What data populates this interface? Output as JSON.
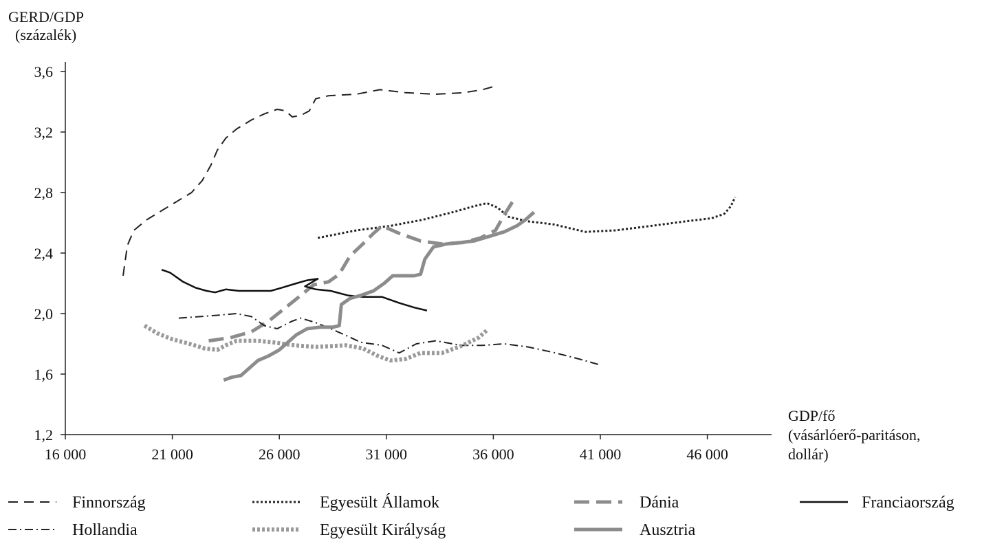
{
  "chart_data": {
    "type": "line",
    "ylabel_line1": "GERD/GDP",
    "ylabel_line2": "(százalék)",
    "xlabel_line1": "GDP/fő",
    "xlabel_line2": "(vásárlóerő-paritáson,",
    "xlabel_line3": "dollár)",
    "xlim": [
      16000,
      49000
    ],
    "ylim": [
      1.2,
      3.7
    ],
    "x_ticks": [
      16000,
      21000,
      26000,
      31000,
      36000,
      41000,
      46000
    ],
    "x_tick_labels": [
      "16 000",
      "21 000",
      "26 000",
      "31 000",
      "36 000",
      "41 000",
      "46 000"
    ],
    "y_ticks": [
      1.2,
      1.6,
      2.0,
      2.4,
      2.8,
      3.2,
      3.6
    ],
    "y_tick_labels": [
      "1,2",
      "1,6",
      "2,0",
      "2,4",
      "2,8",
      "3,2",
      "3,6"
    ],
    "grid": false,
    "legend_position": "bottom",
    "series": [
      {
        "name": "Finnország",
        "color": "#222222",
        "dash": "14,9",
        "width": 2,
        "points": [
          [
            18700,
            2.25
          ],
          [
            18900,
            2.45
          ],
          [
            19200,
            2.55
          ],
          [
            19800,
            2.62
          ],
          [
            20500,
            2.68
          ],
          [
            21200,
            2.74
          ],
          [
            21900,
            2.8
          ],
          [
            22400,
            2.88
          ],
          [
            22800,
            2.98
          ],
          [
            23100,
            3.08
          ],
          [
            23500,
            3.16
          ],
          [
            24000,
            3.22
          ],
          [
            24700,
            3.28
          ],
          [
            25300,
            3.32
          ],
          [
            25900,
            3.35
          ],
          [
            26300,
            3.34
          ],
          [
            26600,
            3.3
          ],
          [
            27000,
            3.31
          ],
          [
            27400,
            3.34
          ],
          [
            27700,
            3.42
          ],
          [
            28300,
            3.44
          ],
          [
            29600,
            3.45
          ],
          [
            30700,
            3.48
          ],
          [
            31900,
            3.46
          ],
          [
            33300,
            3.45
          ],
          [
            34600,
            3.46
          ],
          [
            35500,
            3.48
          ],
          [
            36000,
            3.5
          ]
        ]
      },
      {
        "name": "Egyesült Államok",
        "color": "#222222",
        "dash": "3,3",
        "width": 3,
        "points": [
          [
            27800,
            2.5
          ],
          [
            29600,
            2.55
          ],
          [
            31200,
            2.58
          ],
          [
            32700,
            2.62
          ],
          [
            34100,
            2.67
          ],
          [
            35100,
            2.71
          ],
          [
            35700,
            2.73
          ],
          [
            36200,
            2.7
          ],
          [
            36700,
            2.64
          ],
          [
            37600,
            2.61
          ],
          [
            38800,
            2.59
          ],
          [
            40300,
            2.54
          ],
          [
            41700,
            2.55
          ],
          [
            43400,
            2.58
          ],
          [
            45000,
            2.61
          ],
          [
            46200,
            2.63
          ],
          [
            46800,
            2.66
          ],
          [
            47100,
            2.71
          ],
          [
            47300,
            2.77
          ]
        ]
      },
      {
        "name": "Dánia",
        "color": "#8c8c8c",
        "dash": "22,10",
        "width": 5,
        "points": [
          [
            22700,
            1.82
          ],
          [
            23700,
            1.84
          ],
          [
            24700,
            1.88
          ],
          [
            25500,
            1.95
          ],
          [
            26300,
            2.04
          ],
          [
            27000,
            2.12
          ],
          [
            27600,
            2.19
          ],
          [
            28300,
            2.21
          ],
          [
            28800,
            2.26
          ],
          [
            29300,
            2.38
          ],
          [
            29900,
            2.46
          ],
          [
            30400,
            2.53
          ],
          [
            30800,
            2.58
          ],
          [
            31600,
            2.53
          ],
          [
            32600,
            2.48
          ],
          [
            33600,
            2.46
          ],
          [
            34600,
            2.47
          ],
          [
            35400,
            2.5
          ],
          [
            36100,
            2.55
          ],
          [
            36500,
            2.65
          ],
          [
            36900,
            2.74
          ]
        ]
      },
      {
        "name": "Franciaország",
        "color": "#111111",
        "dash": "",
        "width": 2.5,
        "points": [
          [
            20500,
            2.29
          ],
          [
            20900,
            2.27
          ],
          [
            21500,
            2.21
          ],
          [
            22100,
            2.17
          ],
          [
            22600,
            2.15
          ],
          [
            23000,
            2.14
          ],
          [
            23500,
            2.16
          ],
          [
            24100,
            2.15
          ],
          [
            25000,
            2.15
          ],
          [
            25600,
            2.15
          ],
          [
            26100,
            2.17
          ],
          [
            26800,
            2.2
          ],
          [
            27300,
            2.22
          ],
          [
            27800,
            2.23
          ],
          [
            27200,
            2.18
          ],
          [
            27700,
            2.16
          ],
          [
            28400,
            2.15
          ],
          [
            29200,
            2.12
          ],
          [
            29900,
            2.11
          ],
          [
            30800,
            2.11
          ],
          [
            31600,
            2.07
          ],
          [
            32300,
            2.04
          ],
          [
            32900,
            2.02
          ]
        ]
      },
      {
        "name": "Hollandia",
        "color": "#222222",
        "dash": "12,5,2,5",
        "width": 2,
        "points": [
          [
            21300,
            1.97
          ],
          [
            22300,
            1.98
          ],
          [
            23200,
            1.99
          ],
          [
            24000,
            2.0
          ],
          [
            24700,
            1.98
          ],
          [
            25300,
            1.92
          ],
          [
            25900,
            1.9
          ],
          [
            26600,
            1.95
          ],
          [
            27000,
            1.97
          ],
          [
            27700,
            1.94
          ],
          [
            28400,
            1.9
          ],
          [
            29200,
            1.85
          ],
          [
            29800,
            1.81
          ],
          [
            30800,
            1.79
          ],
          [
            31600,
            1.74
          ],
          [
            32400,
            1.8
          ],
          [
            33300,
            1.82
          ],
          [
            34500,
            1.79
          ],
          [
            35500,
            1.79
          ],
          [
            36500,
            1.8
          ],
          [
            37600,
            1.78
          ],
          [
            38900,
            1.74
          ],
          [
            40000,
            1.7
          ],
          [
            41000,
            1.66
          ]
        ]
      },
      {
        "name": "Egyesült Királyság",
        "color": "#9a9a9a",
        "dash": "4,3",
        "width": 6,
        "points": [
          [
            19700,
            1.92
          ],
          [
            20300,
            1.87
          ],
          [
            21000,
            1.83
          ],
          [
            21800,
            1.8
          ],
          [
            22500,
            1.77
          ],
          [
            23100,
            1.76
          ],
          [
            23500,
            1.79
          ],
          [
            24000,
            1.82
          ],
          [
            25000,
            1.82
          ],
          [
            25700,
            1.81
          ],
          [
            26700,
            1.79
          ],
          [
            27700,
            1.78
          ],
          [
            29100,
            1.79
          ],
          [
            29900,
            1.77
          ],
          [
            30600,
            1.72
          ],
          [
            31200,
            1.69
          ],
          [
            31900,
            1.7
          ],
          [
            32600,
            1.74
          ],
          [
            33600,
            1.74
          ],
          [
            34400,
            1.78
          ],
          [
            35300,
            1.84
          ],
          [
            35700,
            1.89
          ]
        ]
      },
      {
        "name": "Ausztria",
        "color": "#8c8c8c",
        "dash": "",
        "width": 5,
        "points": [
          [
            23400,
            1.56
          ],
          [
            23800,
            1.58
          ],
          [
            24200,
            1.59
          ],
          [
            24600,
            1.64
          ],
          [
            25000,
            1.69
          ],
          [
            25500,
            1.72
          ],
          [
            26000,
            1.76
          ],
          [
            26400,
            1.81
          ],
          [
            26800,
            1.86
          ],
          [
            27300,
            1.9
          ],
          [
            27900,
            1.91
          ],
          [
            28500,
            1.91
          ],
          [
            28800,
            1.92
          ],
          [
            28900,
            2.06
          ],
          [
            29300,
            2.1
          ],
          [
            29800,
            2.12
          ],
          [
            30400,
            2.15
          ],
          [
            30900,
            2.2
          ],
          [
            31300,
            2.25
          ],
          [
            31800,
            2.25
          ],
          [
            32300,
            2.25
          ],
          [
            32600,
            2.26
          ],
          [
            32800,
            2.36
          ],
          [
            33200,
            2.44
          ],
          [
            33800,
            2.46
          ],
          [
            34500,
            2.47
          ],
          [
            35100,
            2.48
          ],
          [
            35800,
            2.51
          ],
          [
            36500,
            2.54
          ],
          [
            37100,
            2.58
          ],
          [
            37500,
            2.62
          ],
          [
            37900,
            2.67
          ]
        ]
      }
    ]
  }
}
